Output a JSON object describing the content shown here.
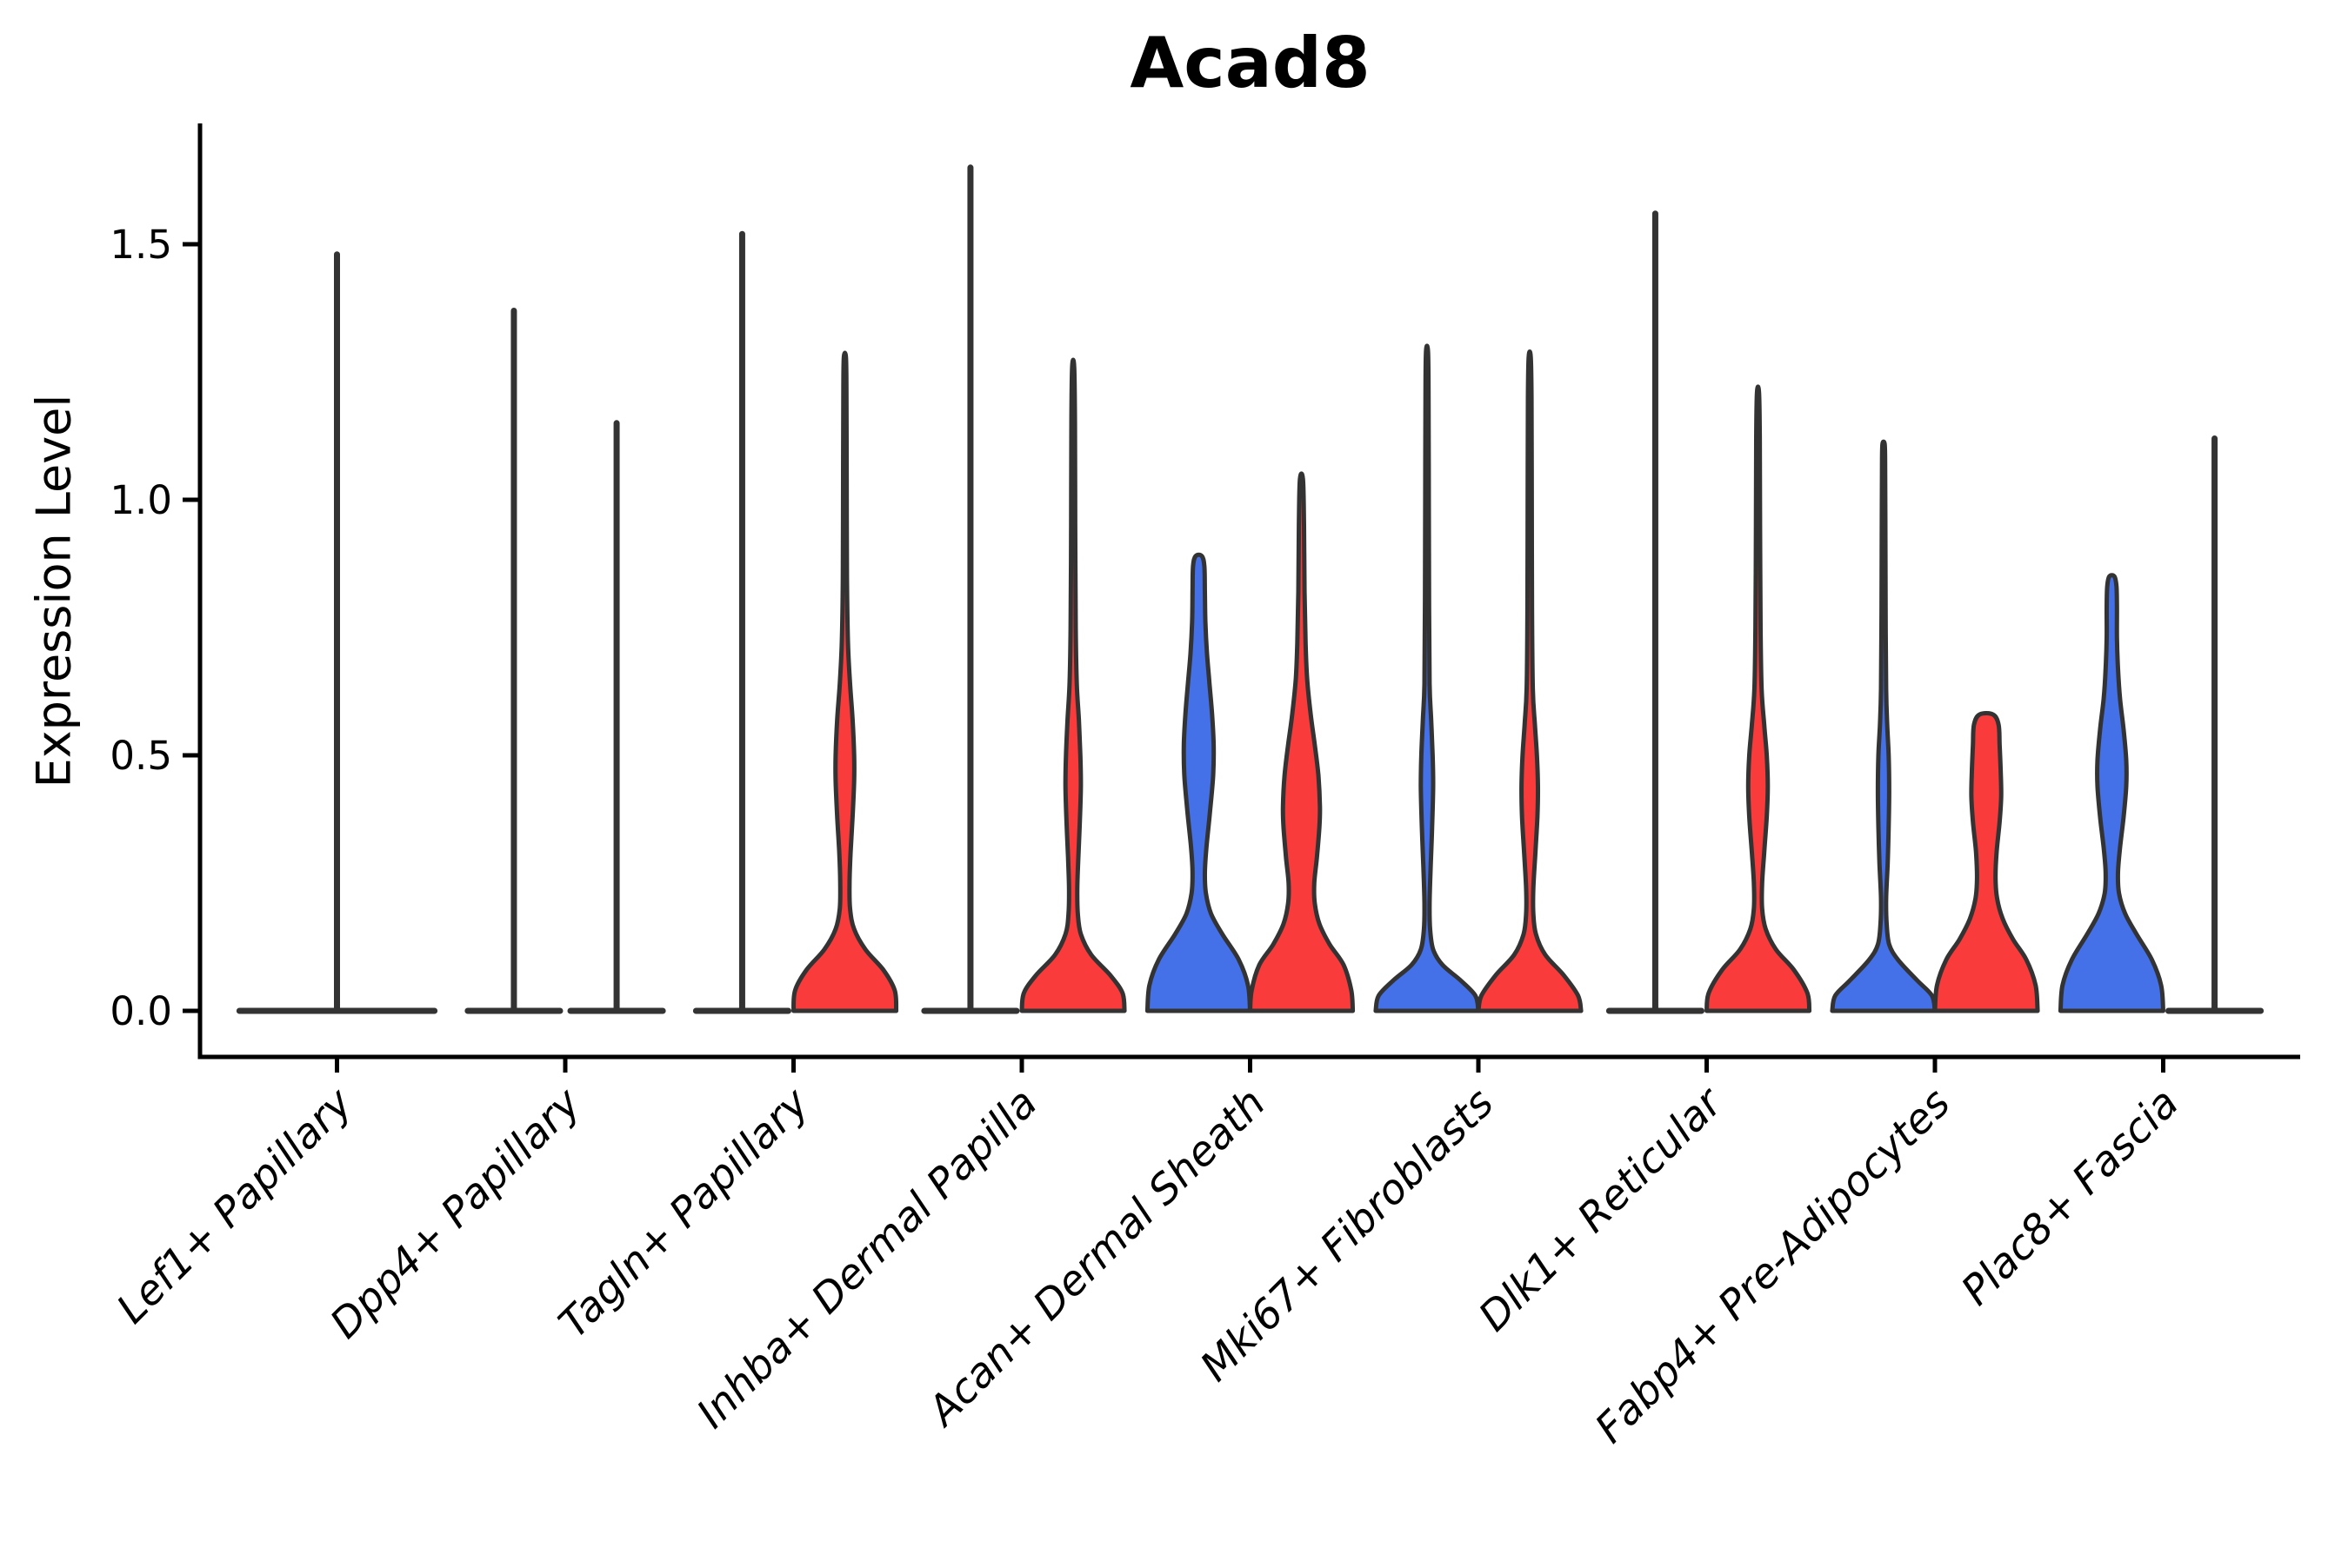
{
  "title": "Acad8",
  "y_axis": {
    "label": "Expression Level",
    "tick_labels": [
      "0.0",
      "0.5",
      "1.0",
      "1.5"
    ],
    "tick_values": [
      0.0,
      0.5,
      1.0,
      1.5
    ]
  },
  "x_axis": {
    "categories": [
      "Lef1+ Papillary",
      "Dpp4+ Papillary",
      "Tagln+ Papillary",
      "Inhba+ Dermal Papilla",
      "Acan+ Dermal Sheath",
      "Mki67+ Fibroblasts",
      "Dlk1+ Reticular",
      "Fabp4+ Pre-Adipocytes",
      "Plac8+ Fascia"
    ]
  },
  "colors": {
    "blue": "#4470E8",
    "red": "#F93B3B",
    "outline": "#333333",
    "axis": "#000000",
    "background": "#FFFFFF"
  },
  "chart_data": {
    "type": "violin",
    "title": "Acad8",
    "ylabel": "Expression Level",
    "ylim": [
      -0.09,
      1.74
    ],
    "yticks": [
      0.0,
      0.5,
      1.0,
      1.5
    ],
    "grid": false,
    "legend": false,
    "categories": [
      "Lef1+ Papillary",
      "Dpp4+ Papillary",
      "Tagln+ Papillary",
      "Inhba+ Dermal Papilla",
      "Acan+ Dermal Sheath",
      "Mki67+ Fibroblasts",
      "Dlk1+ Reticular",
      "Fabp4+ Pre-Adipocytes",
      "Plac8+ Fascia"
    ],
    "groups": [
      {
        "category": "Lef1+ Papillary",
        "violins": [
          {
            "side": "full",
            "color": "none",
            "shape": "flat-spike",
            "max": 1.48
          }
        ]
      },
      {
        "category": "Dpp4+ Papillary",
        "violins": [
          {
            "side": "left",
            "color": "none",
            "shape": "flat-spike",
            "max": 1.37
          },
          {
            "side": "right",
            "color": "none",
            "shape": "flat-spike",
            "max": 1.15
          }
        ]
      },
      {
        "category": "Tagln+ Papillary",
        "violins": [
          {
            "side": "left",
            "color": "none",
            "shape": "flat-spike",
            "max": 1.52
          },
          {
            "side": "right",
            "color": "red",
            "shape": "density",
            "max": 1.28,
            "profile": [
              [
                0,
                1
              ],
              [
                0.04,
                0.97
              ],
              [
                0.08,
                0.75
              ],
              [
                0.12,
                0.4
              ],
              [
                0.16,
                0.18
              ],
              [
                0.2,
                0.1
              ],
              [
                0.25,
                0.09
              ],
              [
                0.31,
                0.11
              ],
              [
                0.38,
                0.15
              ],
              [
                0.45,
                0.18
              ],
              [
                0.5,
                0.18
              ],
              [
                0.57,
                0.15
              ],
              [
                0.64,
                0.1
              ],
              [
                0.72,
                0.06
              ],
              [
                0.85,
                0.04
              ],
              [
                1.05,
                0.035
              ],
              [
                1.22,
                0.03
              ],
              [
                1.28,
                0.02
              ]
            ]
          }
        ]
      },
      {
        "category": "Inhba+ Dermal Papilla",
        "violins": [
          {
            "side": "left",
            "color": "none",
            "shape": "flat-spike",
            "max": 1.65
          },
          {
            "side": "right",
            "color": "red",
            "shape": "density",
            "max": 1.26,
            "profile": [
              [
                0,
                1
              ],
              [
                0.035,
                0.96
              ],
              [
                0.07,
                0.72
              ],
              [
                0.11,
                0.35
              ],
              [
                0.15,
                0.15
              ],
              [
                0.19,
                0.09
              ],
              [
                0.24,
                0.08
              ],
              [
                0.3,
                0.1
              ],
              [
                0.37,
                0.13
              ],
              [
                0.44,
                0.15
              ],
              [
                0.5,
                0.14
              ],
              [
                0.57,
                0.11
              ],
              [
                0.64,
                0.07
              ],
              [
                0.75,
                0.05
              ],
              [
                0.95,
                0.04
              ],
              [
                1.15,
                0.035
              ],
              [
                1.26,
                0.02
              ]
            ]
          }
        ]
      },
      {
        "category": "Acan+ Dermal Sheath",
        "violins": [
          {
            "side": "left",
            "color": "blue",
            "shape": "density",
            "max": 0.89,
            "profile": [
              [
                0,
                1
              ],
              [
                0.05,
                0.96
              ],
              [
                0.1,
                0.78
              ],
              [
                0.15,
                0.46
              ],
              [
                0.19,
                0.24
              ],
              [
                0.23,
                0.14
              ],
              [
                0.27,
                0.12
              ],
              [
                0.32,
                0.15
              ],
              [
                0.39,
                0.22
              ],
              [
                0.46,
                0.28
              ],
              [
                0.52,
                0.29
              ],
              [
                0.58,
                0.26
              ],
              [
                0.64,
                0.21
              ],
              [
                0.7,
                0.16
              ],
              [
                0.76,
                0.13
              ],
              [
                0.82,
                0.12
              ],
              [
                0.87,
                0.11
              ],
              [
                0.89,
                0.06
              ]
            ]
          },
          {
            "side": "right",
            "color": "red",
            "shape": "density",
            "max": 1.04,
            "profile": [
              [
                0,
                1
              ],
              [
                0.04,
                0.97
              ],
              [
                0.09,
                0.82
              ],
              [
                0.13,
                0.55
              ],
              [
                0.17,
                0.35
              ],
              [
                0.21,
                0.26
              ],
              [
                0.25,
                0.25
              ],
              [
                0.3,
                0.3
              ],
              [
                0.36,
                0.35
              ],
              [
                0.4,
                0.36
              ],
              [
                0.46,
                0.33
              ],
              [
                0.52,
                0.26
              ],
              [
                0.58,
                0.18
              ],
              [
                0.65,
                0.11
              ],
              [
                0.72,
                0.08
              ],
              [
                0.82,
                0.06
              ],
              [
                0.95,
                0.05
              ],
              [
                1.04,
                0.03
              ]
            ]
          }
        ]
      },
      {
        "category": "Mki67+ Fibroblasts",
        "violins": [
          {
            "side": "left",
            "color": "blue",
            "shape": "density",
            "max": 1.29,
            "profile": [
              [
                0,
                1
              ],
              [
                0.03,
                0.94
              ],
              [
                0.06,
                0.65
              ],
              [
                0.09,
                0.3
              ],
              [
                0.12,
                0.12
              ],
              [
                0.16,
                0.06
              ],
              [
                0.21,
                0.05
              ],
              [
                0.28,
                0.07
              ],
              [
                0.36,
                0.1
              ],
              [
                0.44,
                0.12
              ],
              [
                0.5,
                0.11
              ],
              [
                0.57,
                0.08
              ],
              [
                0.64,
                0.05
              ],
              [
                0.8,
                0.04
              ],
              [
                1.0,
                0.035
              ],
              [
                1.2,
                0.03
              ],
              [
                1.29,
                0.02
              ]
            ]
          },
          {
            "side": "right",
            "color": "red",
            "shape": "density",
            "max": 1.28,
            "profile": [
              [
                0,
                1
              ],
              [
                0.03,
                0.94
              ],
              [
                0.07,
                0.66
              ],
              [
                0.11,
                0.3
              ],
              [
                0.15,
                0.12
              ],
              [
                0.19,
                0.07
              ],
              [
                0.24,
                0.07
              ],
              [
                0.31,
                0.11
              ],
              [
                0.38,
                0.15
              ],
              [
                0.44,
                0.16
              ],
              [
                0.5,
                0.14
              ],
              [
                0.56,
                0.1
              ],
              [
                0.63,
                0.06
              ],
              [
                0.78,
                0.045
              ],
              [
                1.0,
                0.04
              ],
              [
                1.2,
                0.035
              ],
              [
                1.28,
                0.02
              ]
            ]
          }
        ]
      },
      {
        "category": "Dlk1+ Reticular",
        "violins": [
          {
            "side": "left",
            "color": "none",
            "shape": "flat-spike",
            "max": 1.56
          },
          {
            "side": "right",
            "color": "red",
            "shape": "density",
            "max": 1.21,
            "profile": [
              [
                0,
                1
              ],
              [
                0.035,
                0.96
              ],
              [
                0.08,
                0.7
              ],
              [
                0.12,
                0.35
              ],
              [
                0.16,
                0.15
              ],
              [
                0.2,
                0.08
              ],
              [
                0.25,
                0.08
              ],
              [
                0.31,
                0.12
              ],
              [
                0.38,
                0.17
              ],
              [
                0.44,
                0.19
              ],
              [
                0.5,
                0.17
              ],
              [
                0.56,
                0.12
              ],
              [
                0.63,
                0.07
              ],
              [
                0.75,
                0.05
              ],
              [
                0.95,
                0.04
              ],
              [
                1.12,
                0.035
              ],
              [
                1.21,
                0.02
              ]
            ]
          }
        ]
      },
      {
        "category": "Fabp4+ Pre-Adipocytes",
        "violins": [
          {
            "side": "left",
            "color": "blue",
            "shape": "density",
            "max": 1.11,
            "profile": [
              [
                0,
                1
              ],
              [
                0.03,
                0.94
              ],
              [
                0.06,
                0.65
              ],
              [
                0.1,
                0.28
              ],
              [
                0.13,
                0.11
              ],
              [
                0.17,
                0.06
              ],
              [
                0.22,
                0.05
              ],
              [
                0.29,
                0.08
              ],
              [
                0.36,
                0.1
              ],
              [
                0.43,
                0.11
              ],
              [
                0.5,
                0.1
              ],
              [
                0.56,
                0.07
              ],
              [
                0.63,
                0.05
              ],
              [
                0.78,
                0.04
              ],
              [
                0.95,
                0.035
              ],
              [
                1.08,
                0.03
              ],
              [
                1.11,
                0.02
              ]
            ]
          },
          {
            "side": "right",
            "color": "red",
            "shape": "density",
            "max": 0.58,
            "profile": [
              [
                0,
                1
              ],
              [
                0.05,
                0.96
              ],
              [
                0.1,
                0.78
              ],
              [
                0.14,
                0.52
              ],
              [
                0.18,
                0.32
              ],
              [
                0.22,
                0.21
              ],
              [
                0.26,
                0.18
              ],
              [
                0.31,
                0.2
              ],
              [
                0.37,
                0.26
              ],
              [
                0.42,
                0.29
              ],
              [
                0.47,
                0.28
              ],
              [
                0.52,
                0.26
              ],
              [
                0.56,
                0.24
              ],
              [
                0.58,
                0.13
              ]
            ]
          }
        ]
      },
      {
        "category": "Plac8+ Fascia",
        "violins": [
          {
            "side": "left",
            "color": "blue",
            "shape": "density",
            "max": 0.85,
            "profile": [
              [
                0,
                1
              ],
              [
                0.05,
                0.96
              ],
              [
                0.1,
                0.78
              ],
              [
                0.15,
                0.48
              ],
              [
                0.19,
                0.26
              ],
              [
                0.23,
                0.14
              ],
              [
                0.27,
                0.12
              ],
              [
                0.32,
                0.16
              ],
              [
                0.38,
                0.23
              ],
              [
                0.44,
                0.28
              ],
              [
                0.49,
                0.28
              ],
              [
                0.55,
                0.23
              ],
              [
                0.61,
                0.16
              ],
              [
                0.67,
                0.12
              ],
              [
                0.73,
                0.1
              ],
              [
                0.79,
                0.1
              ],
              [
                0.83,
                0.09
              ],
              [
                0.85,
                0.05
              ]
            ]
          },
          {
            "side": "right",
            "color": "none",
            "shape": "flat-spike",
            "max": 1.12
          }
        ]
      }
    ]
  }
}
